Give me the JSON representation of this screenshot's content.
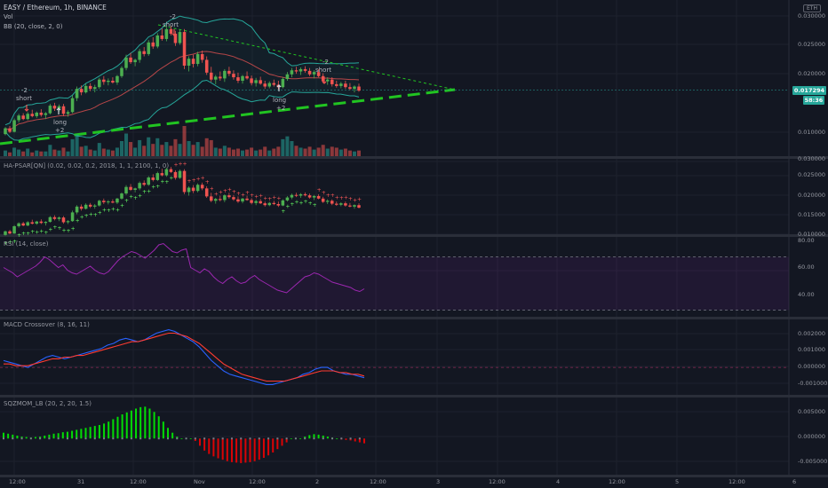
{
  "header": {
    "symbol_title": "EASY / Ethereum, 1h, BINANCE",
    "vol_label": "Vol",
    "bb_label": "BB (20, close, 2, 0)",
    "currency_badge": "ETH"
  },
  "price_panel": {
    "last_price": "0.017294",
    "countdown": "58:36",
    "ticks": [
      "0.030000",
      "0.025000",
      "0.020000",
      "0.010000"
    ],
    "signals": [
      {
        "text": "-2",
        "sub": "short"
      },
      {
        "text": "long",
        "sub": "+2"
      },
      {
        "text": "-2",
        "sub": "short"
      },
      {
        "text": "-2",
        "sub": "short"
      },
      {
        "text": "long",
        "sub": "+2"
      }
    ]
  },
  "hapsar_panel": {
    "title": "HA-PSAR[QN] (0.02, 0.02, 0.2, 2018, 1, 1, 2100, 1, 0)",
    "ticks": [
      "0.030000",
      "0.025000",
      "0.020000",
      "0.015000",
      "0.010000"
    ]
  },
  "rsi_panel": {
    "title": "RSI (14, close)",
    "ticks": [
      "80.00",
      "60.00",
      "40.00"
    ]
  },
  "macd_panel": {
    "title": "MACD Crossover (8, 16, 11)",
    "ticks": [
      "0.002000",
      "0.001000",
      "0.000000",
      "-0.001000"
    ]
  },
  "sqzmom_panel": {
    "title": "SQZMOM_LB (20, 2, 20, 1.5)",
    "ticks": [
      "0.005000",
      "0.000000",
      "-0.005000"
    ]
  },
  "time_axis": {
    "labels": [
      "12:00",
      "31",
      "12:00",
      "Nov",
      "12:00",
      "2",
      "12:00",
      "3",
      "12:00",
      "4",
      "12:00",
      "5",
      "12:00",
      "6"
    ]
  },
  "colors": {
    "background": "#131722",
    "up": "#26a69a",
    "down": "#ef5350",
    "green_signal": "#4caf50",
    "bright_green": "#00e600",
    "bb_band": "#26a69a",
    "bb_basis": "#e05050",
    "trendline_dashed": "#21c421",
    "rsi": "#9c27b0",
    "macd_line": "#2962ff",
    "macd_signal": "#ff3b30",
    "psar_up": "#66ff66",
    "psar_down": "#ff5a5a",
    "sqz_pos": "#00ff00",
    "sqz_neg": "#ff0000"
  },
  "chart_data": [
    {
      "type": "candlestick",
      "title": "EASY / Ethereum, 1h, BINANCE",
      "ylim": [
        0.006,
        0.032
      ],
      "ohlc": [
        [
          0.0098,
          0.011,
          0.0096,
          0.0108
        ],
        [
          0.0108,
          0.0112,
          0.01,
          0.0102
        ],
        [
          0.0102,
          0.0125,
          0.0101,
          0.0122
        ],
        [
          0.0122,
          0.0133,
          0.0118,
          0.013
        ],
        [
          0.013,
          0.0134,
          0.0122,
          0.0124
        ],
        [
          0.0124,
          0.0136,
          0.0122,
          0.0133
        ],
        [
          0.0133,
          0.014,
          0.0127,
          0.0129
        ],
        [
          0.0129,
          0.0137,
          0.0126,
          0.0135
        ],
        [
          0.0135,
          0.0141,
          0.0128,
          0.0131
        ],
        [
          0.0131,
          0.0136,
          0.0124,
          0.0134
        ],
        [
          0.0134,
          0.015,
          0.0132,
          0.0147
        ],
        [
          0.0147,
          0.0152,
          0.0138,
          0.0142
        ],
        [
          0.0142,
          0.0149,
          0.0136,
          0.0146
        ],
        [
          0.0146,
          0.015,
          0.0129,
          0.0133
        ],
        [
          0.0133,
          0.0139,
          0.0128,
          0.0136
        ],
        [
          0.0136,
          0.0165,
          0.0134,
          0.016
        ],
        [
          0.016,
          0.018,
          0.0155,
          0.0176
        ],
        [
          0.0176,
          0.0182,
          0.0165,
          0.017
        ],
        [
          0.017,
          0.0185,
          0.0168,
          0.0181
        ],
        [
          0.0181,
          0.0186,
          0.0172,
          0.0176
        ],
        [
          0.0176,
          0.0183,
          0.017,
          0.0179
        ],
        [
          0.0179,
          0.0195,
          0.0176,
          0.0192
        ],
        [
          0.0192,
          0.0198,
          0.0183,
          0.0188
        ],
        [
          0.0188,
          0.0194,
          0.0182,
          0.019
        ],
        [
          0.019,
          0.0196,
          0.0185,
          0.0187
        ],
        [
          0.0187,
          0.02,
          0.0183,
          0.0198
        ],
        [
          0.0198,
          0.0215,
          0.0195,
          0.0212
        ],
        [
          0.0212,
          0.0235,
          0.0208,
          0.023
        ],
        [
          0.023,
          0.0238,
          0.0219,
          0.0222
        ],
        [
          0.0222,
          0.0228,
          0.0215,
          0.0226
        ],
        [
          0.0226,
          0.0245,
          0.0221,
          0.0241
        ],
        [
          0.0241,
          0.0248,
          0.0232,
          0.0236
        ],
        [
          0.0236,
          0.026,
          0.0233,
          0.0256
        ],
        [
          0.0256,
          0.0265,
          0.0245,
          0.0249
        ],
        [
          0.0249,
          0.0272,
          0.0246,
          0.0268
        ],
        [
          0.0268,
          0.028,
          0.0259,
          0.0262
        ],
        [
          0.0262,
          0.0283,
          0.0258,
          0.0279
        ],
        [
          0.0279,
          0.0285,
          0.0268,
          0.0271
        ],
        [
          0.0271,
          0.0276,
          0.025,
          0.0255
        ],
        [
          0.0255,
          0.0278,
          0.0252,
          0.0274
        ],
        [
          0.0274,
          0.0279,
          0.021,
          0.0216
        ],
        [
          0.0216,
          0.0232,
          0.0206,
          0.0228
        ],
        [
          0.0228,
          0.0235,
          0.0213,
          0.0219
        ],
        [
          0.0219,
          0.024,
          0.0215,
          0.0236
        ],
        [
          0.0236,
          0.0242,
          0.0221,
          0.0226
        ],
        [
          0.0226,
          0.0232,
          0.02,
          0.0204
        ],
        [
          0.0204,
          0.0214,
          0.0188,
          0.0192
        ],
        [
          0.0192,
          0.02,
          0.0184,
          0.0197
        ],
        [
          0.0197,
          0.0206,
          0.019,
          0.0194
        ],
        [
          0.0194,
          0.021,
          0.0188,
          0.0207
        ],
        [
          0.0207,
          0.0214,
          0.0198,
          0.0202
        ],
        [
          0.0202,
          0.0208,
          0.0192,
          0.0196
        ],
        [
          0.0196,
          0.0204,
          0.0186,
          0.019
        ],
        [
          0.019,
          0.02,
          0.0185,
          0.0198
        ],
        [
          0.0198,
          0.0206,
          0.0192,
          0.0194
        ],
        [
          0.0194,
          0.0199,
          0.0182,
          0.0186
        ],
        [
          0.0186,
          0.0195,
          0.018,
          0.0191
        ],
        [
          0.0191,
          0.0197,
          0.0183,
          0.0185
        ],
        [
          0.0185,
          0.019,
          0.0176,
          0.018
        ],
        [
          0.018,
          0.0189,
          0.0177,
          0.0186
        ],
        [
          0.0186,
          0.0192,
          0.018,
          0.0183
        ],
        [
          0.0183,
          0.019,
          0.0175,
          0.0179
        ],
        [
          0.0179,
          0.0196,
          0.0177,
          0.0193
        ],
        [
          0.0193,
          0.0205,
          0.019,
          0.0201
        ],
        [
          0.0201,
          0.0212,
          0.0196,
          0.0208
        ],
        [
          0.0208,
          0.0214,
          0.0202,
          0.0206
        ],
        [
          0.0206,
          0.0213,
          0.02,
          0.021
        ],
        [
          0.021,
          0.0215,
          0.0204,
          0.0207
        ],
        [
          0.0207,
          0.0212,
          0.0198,
          0.0201
        ],
        [
          0.0201,
          0.0208,
          0.0194,
          0.0205
        ],
        [
          0.0205,
          0.021,
          0.0196,
          0.0198
        ],
        [
          0.0198,
          0.0203,
          0.0186,
          0.0189
        ],
        [
          0.0189,
          0.0196,
          0.0183,
          0.0192
        ],
        [
          0.0192,
          0.0196,
          0.018,
          0.0184
        ],
        [
          0.0184,
          0.019,
          0.0178,
          0.0181
        ],
        [
          0.0181,
          0.0188,
          0.0177,
          0.0185
        ],
        [
          0.0185,
          0.019,
          0.0176,
          0.0179
        ],
        [
          0.0179,
          0.0186,
          0.0174,
          0.0176
        ],
        [
          0.0176,
          0.0182,
          0.017,
          0.018
        ],
        [
          0.018,
          0.0185,
          0.0171,
          0.0173
        ]
      ],
      "volume": [
        0.6,
        0.4,
        0.9,
        0.7,
        0.5,
        0.8,
        0.4,
        0.6,
        0.5,
        0.5,
        1.2,
        0.7,
        0.6,
        0.9,
        0.5,
        1.8,
        2.3,
        1.0,
        1.1,
        0.7,
        0.6,
        1.4,
        0.8,
        0.7,
        0.6,
        0.9,
        1.6,
        2.4,
        1.5,
        0.9,
        1.7,
        1.1,
        2.0,
        1.3,
        1.9,
        1.2,
        1.5,
        1.1,
        1.8,
        1.3,
        3.2,
        1.6,
        1.2,
        1.5,
        1.0,
        1.9,
        1.7,
        0.9,
        0.8,
        1.1,
        0.9,
        0.7,
        0.8,
        0.6,
        0.7,
        0.9,
        0.6,
        0.7,
        1.0,
        0.6,
        0.8,
        1.0,
        1.8,
        2.1,
        1.6,
        1.1,
        0.9,
        0.8,
        1.0,
        0.7,
        0.9,
        1.2,
        0.8,
        1.0,
        0.9,
        0.7,
        0.8,
        0.6,
        0.5,
        0.6
      ]
    },
    {
      "type": "line",
      "title": "RSI (14, close)",
      "ylim": [
        25,
        85
      ],
      "reference_lines": [
        70,
        30
      ],
      "values": [
        62,
        60,
        58,
        55,
        57,
        59,
        61,
        63,
        66,
        70,
        68,
        65,
        62,
        64,
        60,
        58,
        57,
        59,
        61,
        63,
        60,
        58,
        57,
        59,
        63,
        67,
        70,
        72,
        74,
        73,
        71,
        69,
        72,
        75,
        79,
        80,
        77,
        74,
        73,
        75,
        76,
        62,
        60,
        58,
        61,
        59,
        55,
        52,
        50,
        53,
        55,
        52,
        50,
        51,
        54,
        56,
        53,
        51,
        49,
        47,
        45,
        44,
        43,
        46,
        49,
        52,
        55,
        56,
        58,
        57,
        55,
        53,
        51,
        50,
        49,
        48,
        47,
        45,
        44,
        46
      ]
    },
    {
      "type": "line",
      "title": "MACD Crossover (8, 16, 11)",
      "ylim": [
        -0.0016,
        0.0028
      ],
      "series": [
        {
          "values": [
            0.0004,
            0.0003,
            0.0002,
            0.0001,
            0.0,
            0.0002,
            0.0004,
            0.0006,
            0.0007,
            0.0006,
            0.0005,
            0.0006,
            0.0007,
            0.0008,
            0.0009,
            0.001,
            0.0011,
            0.0013,
            0.0014,
            0.0016,
            0.0017,
            0.0016,
            0.0015,
            0.0016,
            0.0018,
            0.002,
            0.0021,
            0.0022,
            0.0021,
            0.0019,
            0.0017,
            0.0015,
            0.0012,
            0.0008,
            0.0004,
            0.0001,
            -0.0002,
            -0.0004,
            -0.0005,
            -0.0006,
            -0.0007,
            -0.0008,
            -0.0009,
            -0.001,
            -0.001,
            -0.0009,
            -0.0008,
            -0.0007,
            -0.0006,
            -0.0004,
            -0.0003,
            -0.0001,
            0.0,
            0.0,
            -0.0002,
            -0.0003,
            -0.0004,
            -0.0004,
            -0.0005,
            -0.0006
          ]
        },
        {
          "values": [
            0.0002,
            0.0002,
            0.0001,
            0.0001,
            0.0001,
            0.0002,
            0.0003,
            0.0004,
            0.0005,
            0.0005,
            0.0006,
            0.0006,
            0.0007,
            0.0007,
            0.0008,
            0.0009,
            0.001,
            0.0011,
            0.0012,
            0.0013,
            0.0014,
            0.0015,
            0.0015,
            0.0016,
            0.0017,
            0.0018,
            0.0019,
            0.002,
            0.002,
            0.0019,
            0.0018,
            0.0016,
            0.0014,
            0.0011,
            0.0008,
            0.0005,
            0.0002,
            0.0,
            -0.0002,
            -0.0004,
            -0.0005,
            -0.0006,
            -0.0007,
            -0.0008,
            -0.0008,
            -0.0008,
            -0.0008,
            -0.0007,
            -0.0006,
            -0.0005,
            -0.0004,
            -0.0003,
            -0.0002,
            -0.0002,
            -0.0002,
            -0.0003,
            -0.0003,
            -0.0004,
            -0.0004,
            -0.0005
          ]
        }
      ]
    },
    {
      "type": "bar",
      "title": "SQZMOM_LB (20, 2, 20, 1.5)",
      "ylim": [
        -0.0075,
        0.0085
      ],
      "values": [
        0.0012,
        0.001,
        0.0008,
        0.0006,
        0.0004,
        0.0003,
        0.0002,
        0.0003,
        0.0004,
        0.0006,
        0.0008,
        0.001,
        0.0011,
        0.0013,
        0.0014,
        0.0016,
        0.0018,
        0.002,
        0.0022,
        0.0024,
        0.0026,
        0.0028,
        0.0031,
        0.0035,
        0.004,
        0.0045,
        0.005,
        0.0054,
        0.0058,
        0.0062,
        0.0065,
        0.0066,
        0.0062,
        0.0055,
        0.0046,
        0.0035,
        0.0022,
        0.0012,
        0.0004,
        0,
        0,
        0,
        -0.0005,
        -0.0015,
        -0.0025,
        -0.0032,
        -0.0037,
        -0.0041,
        -0.0044,
        -0.0047,
        -0.0049,
        -0.005,
        -0.0051,
        -0.005,
        -0.0049,
        -0.0047,
        -0.0044,
        -0.004,
        -0.0035,
        -0.0029,
        -0.0022,
        -0.0015,
        -0.0008,
        0,
        0,
        0,
        0.0004,
        0.0007,
        0.0009,
        0.0008,
        0.0006,
        0.0004,
        0.0002,
        0.0,
        -0.0002,
        -0.0003,
        -0.0004,
        -0.0006,
        -0.0008,
        -0.001
      ]
    }
  ]
}
